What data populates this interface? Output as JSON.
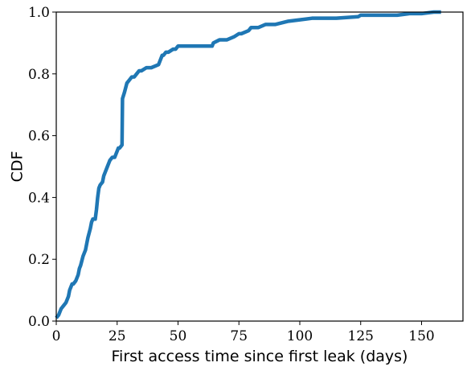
{
  "chart_data": {
    "type": "line",
    "title": "",
    "xlabel": "First access time since first leak (days)",
    "ylabel": "CDF",
    "xlim": [
      0,
      167
    ],
    "ylim": [
      0.0,
      1.0
    ],
    "x_ticks": [
      0,
      25,
      50,
      75,
      100,
      125,
      150
    ],
    "x_tick_labels": [
      "0",
      "25",
      "50",
      "75",
      "100",
      "125",
      "150"
    ],
    "y_ticks": [
      0.0,
      0.2,
      0.4,
      0.6,
      0.8,
      1.0
    ],
    "y_tick_labels": [
      "0.0",
      "0.2",
      "0.4",
      "0.6",
      "0.8",
      "1.0"
    ],
    "grid": false,
    "legend": "none",
    "color": "#1f77b4",
    "series": [
      {
        "x": [
          0,
          1,
          1.5,
          2,
          3,
          4,
          5,
          5.5,
          6,
          6.5,
          7,
          8,
          9,
          9.5,
          10,
          11,
          12,
          12.5,
          13,
          14,
          14.5,
          15,
          16,
          16.5,
          17,
          17.5,
          18,
          19,
          19.5,
          20,
          21,
          21.5,
          22,
          23,
          24,
          25,
          25.5,
          26,
          27,
          27.2,
          28,
          29,
          30,
          31,
          32,
          33,
          34,
          35,
          37,
          39,
          42,
          43,
          43.5,
          44,
          45,
          46,
          48,
          49,
          50,
          52,
          55,
          60,
          64,
          64.5,
          67,
          70,
          73,
          75,
          76,
          79,
          80,
          83,
          86,
          90,
          95,
          100,
          105,
          115,
          124,
          125,
          140,
          145,
          150,
          155,
          158
        ],
        "y": [
          0.01,
          0.02,
          0.03,
          0.04,
          0.05,
          0.06,
          0.08,
          0.1,
          0.11,
          0.12,
          0.12,
          0.13,
          0.15,
          0.17,
          0.18,
          0.21,
          0.23,
          0.25,
          0.27,
          0.3,
          0.32,
          0.33,
          0.33,
          0.36,
          0.4,
          0.43,
          0.44,
          0.45,
          0.47,
          0.48,
          0.5,
          0.51,
          0.52,
          0.53,
          0.53,
          0.55,
          0.56,
          0.56,
          0.57,
          0.72,
          0.74,
          0.77,
          0.78,
          0.79,
          0.79,
          0.8,
          0.81,
          0.81,
          0.82,
          0.82,
          0.83,
          0.85,
          0.86,
          0.86,
          0.87,
          0.87,
          0.88,
          0.88,
          0.89,
          0.89,
          0.89,
          0.89,
          0.89,
          0.9,
          0.91,
          0.91,
          0.92,
          0.93,
          0.93,
          0.94,
          0.95,
          0.95,
          0.96,
          0.96,
          0.97,
          0.975,
          0.98,
          0.98,
          0.985,
          0.99,
          0.99,
          0.995,
          0.995,
          1.0,
          1.0
        ]
      }
    ]
  }
}
